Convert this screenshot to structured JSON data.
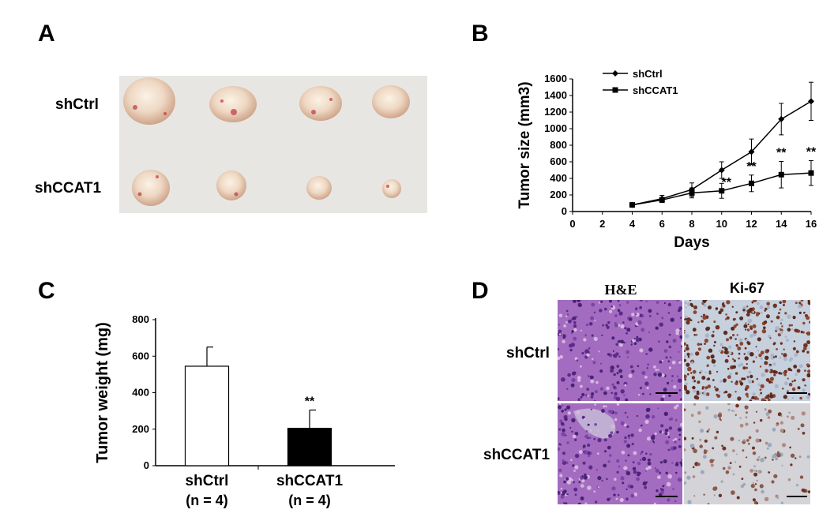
{
  "panels": {
    "a": "A",
    "b": "B",
    "c": "C",
    "d": "D"
  },
  "panel_a": {
    "row_labels": [
      "shCtrl",
      "shCCAT1"
    ],
    "colors": {
      "background": "#e8e6e3",
      "tissue": "#ecd6c2",
      "blood": "#c0404a"
    }
  },
  "panel_d": {
    "column_labels": [
      "H&E",
      "Ki-67"
    ],
    "row_labels": [
      "shCtrl",
      "shCCAT1"
    ],
    "colors": {
      "he_stain": "#a36cc0",
      "ki67_brown": "#6e3324",
      "ki67_bg": "#c7d0dd"
    }
  },
  "chart_data": [
    {
      "type": "line",
      "panel": "B",
      "xlabel": "Days",
      "ylabel": "Tumor size (mm3)",
      "xlim": [
        0,
        16
      ],
      "ylim": [
        0,
        1600
      ],
      "x_ticks": [
        "0",
        "2",
        "4",
        "6",
        "8",
        "10",
        "12",
        "14",
        "16"
      ],
      "y_ticks": [
        "0",
        "200",
        "400",
        "600",
        "800",
        "1000",
        "1200",
        "1400",
        "1600"
      ],
      "legend_position": "top-left",
      "x": [
        4,
        6,
        8,
        10,
        12,
        14,
        16
      ],
      "series": [
        {
          "name": "shCtrl",
          "marker": "diamond",
          "values": [
            80,
            155,
            265,
            500,
            720,
            1115,
            1330
          ],
          "errors": [
            20,
            40,
            80,
            100,
            155,
            190,
            230
          ]
        },
        {
          "name": "shCCAT1",
          "marker": "square",
          "values": [
            80,
            140,
            225,
            250,
            340,
            445,
            465
          ],
          "errors": [
            20,
            30,
            60,
            90,
            100,
            160,
            150
          ]
        }
      ],
      "annotations": [
        {
          "x": 10,
          "text": "**"
        },
        {
          "x": 12,
          "text": "**"
        },
        {
          "x": 14,
          "text": "**"
        },
        {
          "x": 16,
          "text": "**"
        }
      ],
      "grid": false
    },
    {
      "type": "bar",
      "panel": "C",
      "ylabel": "Tumor weight (mg)",
      "ylim": [
        0,
        800
      ],
      "y_ticks": [
        "0",
        "200",
        "400",
        "600",
        "800"
      ],
      "categories": [
        "shCtrl",
        "shCCAT1"
      ],
      "category_sublabels": [
        "(n = 4)",
        "(n = 4)"
      ],
      "values": [
        545,
        205
      ],
      "errors": [
        105,
        100
      ],
      "bar_fills": [
        "#ffffff",
        "#000000"
      ],
      "annotations": [
        {
          "category": "shCCAT1",
          "text": "**"
        }
      ],
      "grid": false
    }
  ]
}
